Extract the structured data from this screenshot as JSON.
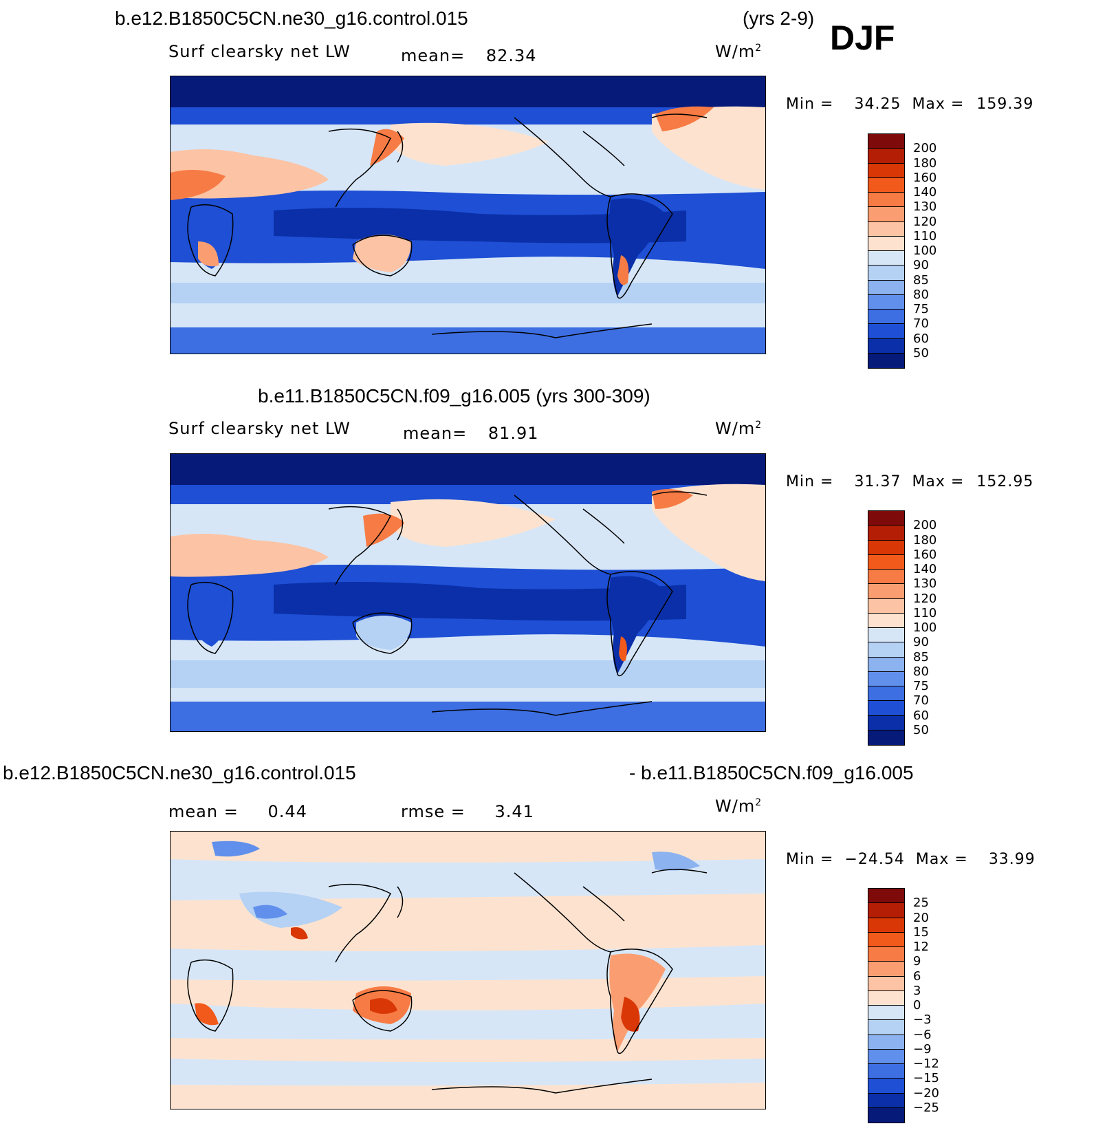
{
  "header": {
    "case1": "b.e12.B1850C5CN.ne30_g16.control.015",
    "case1_years": "(yrs 2-9)",
    "season": "DJF"
  },
  "panels": [
    {
      "id": "top",
      "title": null,
      "variable": "Surf clearsky net LW",
      "mean_label": "mean=",
      "mean_value": "82.34",
      "units_base": "W/m",
      "units_exp": "2",
      "min_label": "Min =",
      "min_value": "34.25",
      "max_label": "Max =",
      "max_value": "159.39",
      "levels": [
        "200",
        "180",
        "160",
        "140",
        "130",
        "120",
        "110",
        "100",
        "90",
        "85",
        "80",
        "75",
        "70",
        "60",
        "50"
      ],
      "colors": [
        "#7f0a0a",
        "#b31e05",
        "#d93806",
        "#f25a1c",
        "#f77b45",
        "#fa9e72",
        "#fcc3a4",
        "#fde3cf",
        "#d6e6f7",
        "#b5d1f4",
        "#8cb2ef",
        "#6190ec",
        "#3d6fe3",
        "#1e4fd4",
        "#0a2fa8",
        "#061a7a"
      ]
    },
    {
      "id": "middle",
      "title": "b.e11.B1850C5CN.f09_g16.005 (yrs 300-309)",
      "variable": "Surf clearsky net LW",
      "mean_label": "mean=",
      "mean_value": "81.91",
      "units_base": "W/m",
      "units_exp": "2",
      "min_label": "Min =",
      "min_value": "31.37",
      "max_label": "Max =",
      "max_value": "152.95",
      "levels": [
        "200",
        "180",
        "160",
        "140",
        "130",
        "120",
        "110",
        "100",
        "90",
        "85",
        "80",
        "75",
        "70",
        "60",
        "50"
      ],
      "colors": [
        "#7f0a0a",
        "#b31e05",
        "#d93806",
        "#f25a1c",
        "#f77b45",
        "#fa9e72",
        "#fcc3a4",
        "#fde3cf",
        "#d6e6f7",
        "#b5d1f4",
        "#8cb2ef",
        "#6190ec",
        "#3d6fe3",
        "#1e4fd4",
        "#0a2fa8",
        "#061a7a"
      ]
    },
    {
      "id": "bottom",
      "title_left": "b.e12.B1850C5CN.ne30_g16.control.015",
      "title_right": "- b.e11.B1850C5CN.f09_g16.005",
      "mean_label": "mean =",
      "mean_value": "0.44",
      "rmse_label": "rmse =",
      "rmse_value": "3.41",
      "units_base": "W/m",
      "units_exp": "2",
      "min_label": "Min =",
      "min_value": "−24.54",
      "max_label": "Max =",
      "max_value": "33.99",
      "levels": [
        "25",
        "20",
        "15",
        "12",
        "9",
        "6",
        "3",
        "0",
        "−3",
        "−6",
        "−9",
        "−12",
        "−15",
        "−20",
        "−25"
      ],
      "colors": [
        "#7f0a0a",
        "#b31e05",
        "#d93806",
        "#f25a1c",
        "#f77b45",
        "#fa9e72",
        "#fcc3a4",
        "#fde3cf",
        "#d6e6f7",
        "#b5d1f4",
        "#8cb2ef",
        "#6190ec",
        "#3d6fe3",
        "#1e4fd4",
        "#0a2fa8",
        "#061a7a"
      ]
    }
  ]
}
